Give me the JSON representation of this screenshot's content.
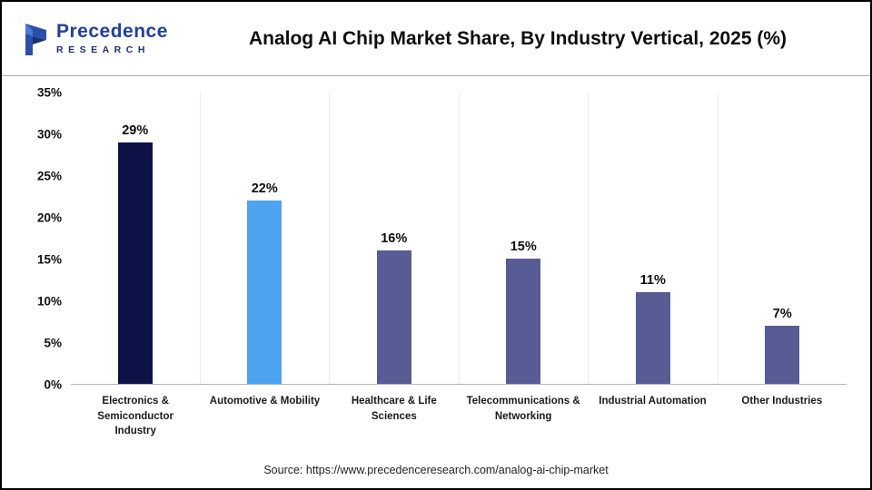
{
  "header": {
    "logo_line1": "Precedence",
    "logo_line2": "RESEARCH",
    "title": "Analog AI Chip Market Share, By Industry Vertical, 2025 (%)"
  },
  "colors": {
    "logo_blue": "#21409a",
    "logo_dark_blue": "#1b2f74",
    "bar_dark_navy": "#0d1246",
    "bar_light_blue": "#4da3f0",
    "bar_slate": "#575c94"
  },
  "chart_data": {
    "type": "bar",
    "title": "Analog AI Chip Market Share, By Industry Vertical, 2025 (%)",
    "categories": [
      "Electronics & Semiconductor Industry",
      "Automotive & Mobility",
      "Healthcare & Life Sciences",
      "Telecommunications & Networking",
      "Industrial Automation",
      "Other Industries"
    ],
    "values": [
      29,
      22,
      16,
      15,
      11,
      7
    ],
    "value_labels": [
      "29%",
      "22%",
      "16%",
      "15%",
      "11%",
      "7%"
    ],
    "bar_colors": [
      "#0d1246",
      "#4da3f0",
      "#575c94",
      "#575c94",
      "#575c94",
      "#575c94"
    ],
    "xlabel": "",
    "ylabel": "",
    "ylim": [
      0,
      35
    ],
    "yticks": [
      "0%",
      "5%",
      "10%",
      "15%",
      "20%",
      "25%",
      "30%",
      "35%"
    ],
    "grid": "vertical category separators, no horizontal gridlines",
    "legend": "none"
  },
  "footer": {
    "source": "Source: https://www.precedenceresearch.com/analog-ai-chip-market"
  }
}
